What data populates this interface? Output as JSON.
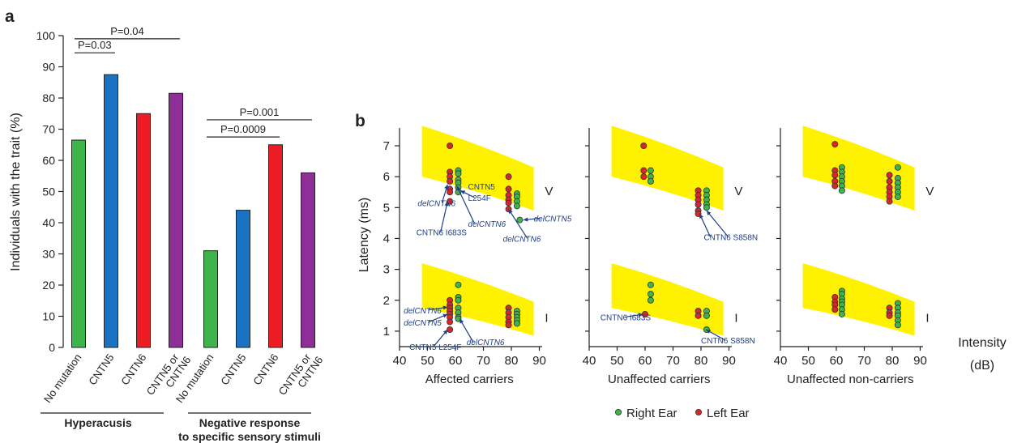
{
  "colors": {
    "green": "#3db54a",
    "blue": "#1a73c2",
    "red": "#ec1c24",
    "purple": "#8e2f97",
    "band": "#fff200",
    "arrow": "#1f3f86",
    "right_ear": "#3db54a",
    "left_ear": "#d9262c"
  },
  "chart_data": [
    {
      "panel_label": "a",
      "type": "bar",
      "ylabel": "Individuals with the trait (%)",
      "ylim": [
        0,
        100
      ],
      "yticks": [
        0,
        10,
        20,
        30,
        40,
        50,
        60,
        70,
        80,
        90,
        100
      ],
      "groups": [
        {
          "label": "Hyperacusis",
          "bars": [
            {
              "category": "No mutation",
              "value": 66.5,
              "color": "green"
            },
            {
              "category": "CNTN5",
              "value": 87.5,
              "color": "blue"
            },
            {
              "category": "CNTN6",
              "value": 75,
              "color": "red"
            },
            {
              "category": "CNTN5 or CNTN6",
              "value": 81.5,
              "color": "purple"
            }
          ],
          "comparisons": [
            {
              "label": "P=0.03",
              "from": 0,
              "to": 1,
              "y": 94.5
            },
            {
              "label": "P=0.04",
              "from": 0,
              "to": 3,
              "y": 99
            }
          ]
        },
        {
          "label": "Negative response to specific sensory stimuli",
          "bars": [
            {
              "category": "No mutation",
              "value": 31,
              "color": "green"
            },
            {
              "category": "CNTN5",
              "value": 44,
              "color": "blue"
            },
            {
              "category": "CNTN6",
              "value": 65,
              "color": "red"
            },
            {
              "category": "CNTN5 or CNTN6",
              "value": 56,
              "color": "purple"
            }
          ],
          "comparisons": [
            {
              "label": "P=0.0009",
              "from": 0,
              "to": 2,
              "y": 67.5
            },
            {
              "label": "P=0.001",
              "from": 0,
              "to": 3,
              "y": 73
            }
          ]
        }
      ]
    },
    {
      "panel_label": "b",
      "type": "scatter",
      "ylabel": "Latency (ms)",
      "xlabel": "Intensity (dB)",
      "xlabel_lines": [
        "Intensity",
        "(dB)"
      ],
      "xlim": [
        40,
        90
      ],
      "xticks": [
        40,
        50,
        60,
        70,
        80,
        90
      ],
      "ylim": [
        0.5,
        7.5
      ],
      "yticks": [
        1,
        2,
        3,
        4,
        5,
        6,
        7
      ],
      "band_V": {
        "x": [
          48,
          88
        ],
        "lower": [
          6.0,
          4.9
        ],
        "upper": [
          7.65,
          6.3
        ]
      },
      "band_I": {
        "x": [
          48,
          88
        ],
        "lower": [
          1.75,
          0.85
        ],
        "upper": [
          3.2,
          1.95
        ]
      },
      "wave_labels": [
        "V",
        "I"
      ],
      "legend": [
        {
          "label": "Right Ear",
          "color": "right_ear"
        },
        {
          "label": "Left Ear",
          "color": "left_ear"
        }
      ],
      "panels": [
        {
          "title": "Affected carriers",
          "left": [
            [
              58,
              7.0
            ],
            [
              58,
              6.15
            ],
            [
              58,
              6.0
            ],
            [
              58,
              5.85
            ],
            [
              58,
              5.6
            ],
            [
              58,
              5.5
            ],
            [
              58,
              5.2
            ],
            [
              79,
              6.0
            ],
            [
              79,
              5.6
            ],
            [
              79,
              5.4
            ],
            [
              79,
              5.25
            ],
            [
              79,
              5.15
            ],
            [
              79,
              4.95
            ],
            [
              58,
              2.0
            ],
            [
              58,
              1.85
            ],
            [
              58,
              1.75
            ],
            [
              58,
              1.65
            ],
            [
              58,
              1.55
            ],
            [
              58,
              1.45
            ],
            [
              58,
              1.3
            ],
            [
              58,
              1.05
            ],
            [
              79,
              1.75
            ],
            [
              79,
              1.6
            ],
            [
              79,
              1.45
            ],
            [
              79,
              1.3
            ],
            [
              79,
              1.2
            ]
          ],
          "right": [
            [
              61,
              6.2
            ],
            [
              61,
              6.1
            ],
            [
              61,
              5.9
            ],
            [
              61,
              5.8
            ],
            [
              61,
              5.65
            ],
            [
              61,
              5.5
            ],
            [
              82,
              5.45
            ],
            [
              82,
              5.35
            ],
            [
              82,
              5.2
            ],
            [
              82,
              5.05
            ],
            [
              83,
              4.6
            ],
            [
              61,
              2.5
            ],
            [
              61,
              2.1
            ],
            [
              61,
              2.0
            ],
            [
              61,
              1.75
            ],
            [
              61,
              1.6
            ],
            [
              61,
              1.45
            ],
            [
              61,
              1.4
            ],
            [
              82,
              1.65
            ],
            [
              82,
              1.55
            ],
            [
              82,
              1.45
            ],
            [
              82,
              1.35
            ],
            [
              82,
              1.25
            ]
          ],
          "annotations": [
            {
              "text": "CNTN5",
              "italic": false,
              "tx": 64.5,
              "ty": 5.58
            },
            {
              "text": "L254F",
              "italic": false,
              "tx": 64.5,
              "ty": 5.22,
              "ax": 61.8,
              "ay": 5.55
            },
            {
              "text": "delCNTN6",
              "italic": true,
              "tx": 46.5,
              "ty": 5.05,
              "ax": 57.2,
              "ay": 5.75
            },
            {
              "text": "delCNTN6",
              "italic": true,
              "tx": 64.5,
              "ty": 4.38,
              "ax": 60.5,
              "ay": 5.7
            },
            {
              "text": "CNTN6 I683S",
              "italic": false,
              "tx": 46,
              "ty": 4.1,
              "ax": 57.2,
              "ay": 5.2
            },
            {
              "text": "delCNTN6",
              "italic": true,
              "tx": 77,
              "ty": 3.9,
              "ax": 79,
              "ay": 4.95
            },
            {
              "text": "delCNTN5",
              "italic": true,
              "tx": 88,
              "ty": 4.55,
              "ax": 84.3,
              "ay": 4.6
            },
            {
              "text": "delCNTN6",
              "italic": true,
              "tx": 41.5,
              "ty": 1.58,
              "ax": 57.2,
              "ay": 1.78
            },
            {
              "text": "delCNTN5",
              "italic": true,
              "tx": 41.5,
              "ty": 1.18,
              "ax": 57.2,
              "ay": 1.55
            },
            {
              "text": "CNTN5 L254F",
              "italic": false,
              "tx": 43.5,
              "ty": 0.4,
              "ax": 57.2,
              "ay": 1.05
            },
            {
              "text": "delCNTN6",
              "italic": true,
              "tx": 64,
              "ty": 0.55,
              "ax": 61.5,
              "ay": 1.4
            }
          ]
        },
        {
          "title": "Unaffected carriers",
          "left": [
            [
              59.5,
              7.0
            ],
            [
              59.5,
              6.2
            ],
            [
              59.5,
              6.0
            ],
            [
              79,
              5.55
            ],
            [
              79,
              5.4
            ],
            [
              79,
              5.25
            ],
            [
              79,
              5.1
            ],
            [
              79,
              4.9
            ],
            [
              79,
              4.8
            ],
            [
              79,
              1.65
            ],
            [
              79,
              1.5
            ],
            [
              60,
              1.55
            ]
          ],
          "right": [
            [
              62,
              6.2
            ],
            [
              62,
              6.0
            ],
            [
              62,
              5.85
            ],
            [
              82,
              5.55
            ],
            [
              82,
              5.4
            ],
            [
              82,
              5.25
            ],
            [
              82,
              5.1
            ],
            [
              82,
              5.0
            ],
            [
              62,
              2.5
            ],
            [
              62,
              2.2
            ],
            [
              62,
              2.0
            ],
            [
              82,
              1.65
            ],
            [
              82,
              1.5
            ],
            [
              82,
              1.05
            ]
          ],
          "annotations": [
            {
              "text": "CNTN6 S858N",
              "italic": false,
              "tx": 81,
              "ty": 3.95,
              "ax1": 79.5,
              "ay1": 4.8,
              "ax2": 82,
              "ay2": 4.9
            },
            {
              "text": "CNTN6 I683S",
              "italic": false,
              "tx": 44,
              "ty": 1.35,
              "ax": 59.2,
              "ay": 1.55
            },
            {
              "text": "CNTN6 S858N",
              "italic": false,
              "tx": 80,
              "ty": 0.6,
              "ax": 81.8,
              "ay": 1.05
            }
          ]
        },
        {
          "title": "Unaffected non-carriers",
          "left": [
            [
              59.5,
              7.05
            ],
            [
              59.5,
              6.2
            ],
            [
              59.5,
              6.05
            ],
            [
              59.5,
              5.85
            ],
            [
              59.5,
              5.7
            ],
            [
              79,
              6.05
            ],
            [
              79,
              5.85
            ],
            [
              79,
              5.65
            ],
            [
              79,
              5.5
            ],
            [
              79,
              5.35
            ],
            [
              79,
              5.2
            ],
            [
              59.5,
              2.1
            ],
            [
              59.5,
              1.95
            ],
            [
              59.5,
              1.85
            ],
            [
              59.5,
              1.7
            ],
            [
              79,
              1.75
            ],
            [
              79,
              1.6
            ],
            [
              79,
              1.5
            ]
          ],
          "right": [
            [
              62,
              6.3
            ],
            [
              62,
              6.15
            ],
            [
              62,
              6.0
            ],
            [
              62,
              5.85
            ],
            [
              62,
              5.7
            ],
            [
              62,
              5.55
            ],
            [
              82,
              6.3
            ],
            [
              82,
              5.95
            ],
            [
              82,
              5.8
            ],
            [
              82,
              5.65
            ],
            [
              82,
              5.5
            ],
            [
              82,
              5.35
            ],
            [
              62,
              2.3
            ],
            [
              62,
              2.2
            ],
            [
              62,
              2.05
            ],
            [
              62,
              1.95
            ],
            [
              62,
              1.85
            ],
            [
              62,
              1.7
            ],
            [
              62,
              1.55
            ],
            [
              82,
              1.9
            ],
            [
              82,
              1.75
            ],
            [
              82,
              1.6
            ],
            [
              82,
              1.5
            ],
            [
              82,
              1.35
            ],
            [
              82,
              1.2
            ]
          ],
          "annotations": []
        }
      ]
    }
  ]
}
